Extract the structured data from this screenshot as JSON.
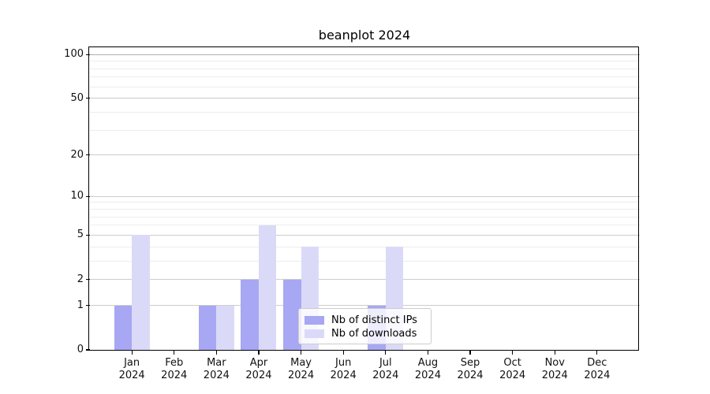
{
  "title": "beanplot 2024",
  "chart_data": {
    "type": "bar",
    "title": "beanplot 2024",
    "categories": [
      "Jan 2024",
      "Feb 2024",
      "Mar 2024",
      "Apr 2024",
      "May 2024",
      "Jun 2024",
      "Jul 2024",
      "Aug 2024",
      "Sep 2024",
      "Oct 2024",
      "Nov 2024",
      "Dec 2024"
    ],
    "x_tick_line1": [
      "Jan",
      "Feb",
      "Mar",
      "Apr",
      "May",
      "Jun",
      "Jul",
      "Aug",
      "Sep",
      "Oct",
      "Nov",
      "Dec"
    ],
    "x_tick_line2": "2024",
    "series": [
      {
        "name": "Nb of distinct IPs",
        "color": "#a7a7f3",
        "values": [
          1,
          0,
          1,
          2,
          2,
          0,
          1,
          0,
          0,
          0,
          0,
          0
        ]
      },
      {
        "name": "Nb of downloads",
        "color": "#dadaf8",
        "values": [
          5,
          0,
          1,
          6,
          4,
          0,
          4,
          0,
          0,
          0,
          0,
          0
        ]
      }
    ],
    "xlabel": "",
    "ylabel": "",
    "y_scale": "log1p",
    "ylim": [
      0,
      112
    ],
    "y_major_ticks": [
      0,
      1,
      2,
      5,
      10,
      20,
      50,
      100
    ],
    "y_minor_ticks": [
      3,
      4,
      6,
      7,
      8,
      9,
      30,
      40,
      60,
      70,
      80,
      90
    ],
    "grid": "horizontal, majors and log minors, no vertical grid",
    "legend_position": "inside lower center-right",
    "colors": {
      "grid_major": "#cccccc",
      "grid_minor": "#ededed",
      "grid_top_line": "#b0b0b0",
      "axis": "#000000",
      "text": "#111111",
      "background": "#ffffff"
    }
  }
}
